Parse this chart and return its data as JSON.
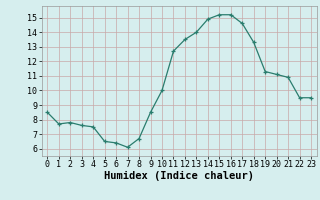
{
  "x": [
    0,
    1,
    2,
    3,
    4,
    5,
    6,
    7,
    8,
    9,
    10,
    11,
    12,
    13,
    14,
    15,
    16,
    17,
    18,
    19,
    20,
    21,
    22,
    23
  ],
  "y": [
    8.5,
    7.7,
    7.8,
    7.6,
    7.5,
    6.5,
    6.4,
    6.1,
    6.7,
    8.5,
    10.0,
    12.7,
    13.5,
    14.0,
    14.9,
    15.2,
    15.2,
    14.6,
    13.3,
    11.3,
    11.1,
    10.9,
    9.5,
    9.5
  ],
  "xlabel": "Humidex (Indice chaleur)",
  "ylim": [
    5.5,
    15.8
  ],
  "xlim": [
    -0.5,
    23.5
  ],
  "yticks": [
    6,
    7,
    8,
    9,
    10,
    11,
    12,
    13,
    14,
    15
  ],
  "xticks": [
    0,
    1,
    2,
    3,
    4,
    5,
    6,
    7,
    8,
    9,
    10,
    11,
    12,
    13,
    14,
    15,
    16,
    17,
    18,
    19,
    20,
    21,
    22,
    23
  ],
  "line_color": "#2a7d6e",
  "marker_color": "#2a7d6e",
  "bg_color": "#d6eeee",
  "grid_color": "#c8a8a8",
  "tick_label_fontsize": 6.0,
  "xlabel_fontsize": 7.5
}
